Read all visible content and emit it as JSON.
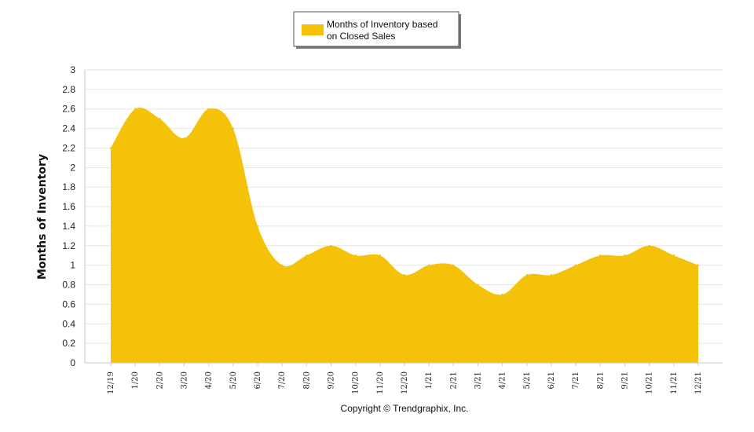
{
  "chart_data": {
    "type": "area",
    "ylabel": "Months of Inventory",
    "ylim": [
      0,
      3
    ],
    "yticks": [
      0,
      0.2,
      0.4,
      0.6,
      0.8,
      1,
      1.2,
      1.4,
      1.6,
      1.8,
      2,
      2.2,
      2.4,
      2.6,
      2.8,
      3
    ],
    "categories": [
      "12/19",
      "1/20",
      "2/20",
      "3/20",
      "4/20",
      "5/20",
      "6/20",
      "7/20",
      "8/20",
      "9/20",
      "10/20",
      "11/20",
      "12/20",
      "1/21",
      "2/21",
      "3/21",
      "4/21",
      "5/21",
      "6/21",
      "7/21",
      "8/21",
      "9/21",
      "10/21",
      "11/21",
      "12/21"
    ],
    "series": [
      {
        "name": "Months of Inventory based on Closed Sales",
        "color": "#F5C20A",
        "values": [
          2.2,
          2.6,
          2.5,
          2.3,
          2.6,
          2.4,
          1.4,
          1.0,
          1.1,
          1.2,
          1.1,
          1.1,
          0.9,
          1.0,
          1.0,
          0.8,
          0.7,
          0.9,
          0.9,
          1.0,
          1.1,
          1.1,
          1.2,
          1.1,
          1.0
        ]
      }
    ],
    "legend": {
      "position": "top-center",
      "lines": [
        "Months of Inventory based",
        "on Closed Sales"
      ]
    },
    "grid": true
  },
  "footer": {
    "copyright": "Copyright © Trendgraphix, Inc."
  }
}
